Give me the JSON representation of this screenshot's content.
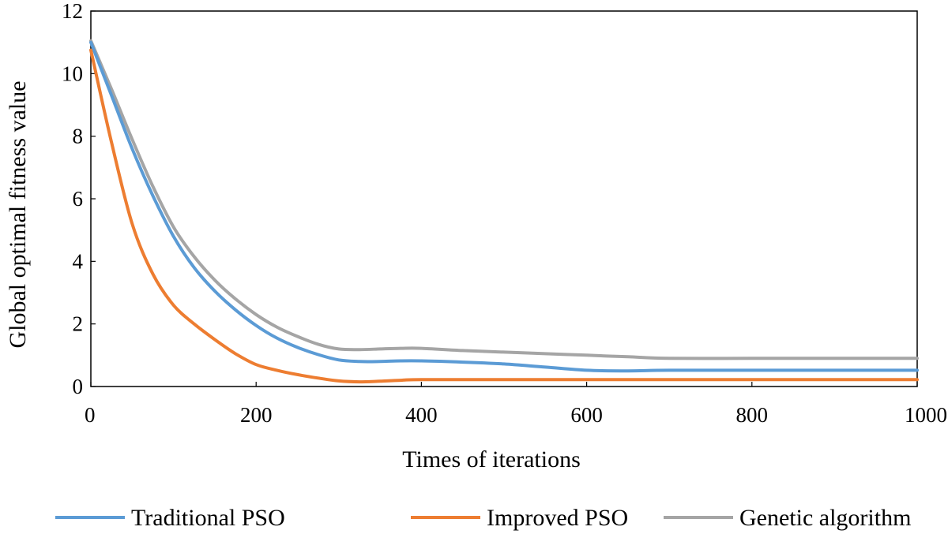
{
  "chart_data": {
    "type": "line",
    "title": "",
    "xlabel": "Times of iterations",
    "ylabel": "Global optimal fitness value",
    "xlim": [
      0,
      1000
    ],
    "ylim": [
      0,
      12
    ],
    "xticks": [
      0,
      200,
      400,
      600,
      800,
      1000
    ],
    "yticks": [
      0,
      2,
      4,
      6,
      8,
      10,
      12
    ],
    "grid": false,
    "legend_position": "bottom",
    "series": [
      {
        "name": "Traditional PSO",
        "color": "#5B9BD5",
        "x": [
          0,
          25,
          50,
          75,
          100,
          125,
          150,
          175,
          200,
          225,
          250,
          275,
          300,
          325,
          350,
          375,
          400,
          450,
          500,
          550,
          600,
          650,
          700,
          800,
          900,
          1000
        ],
        "y": [
          11.0,
          9.3,
          7.6,
          6.1,
          4.8,
          3.8,
          3.05,
          2.45,
          1.95,
          1.55,
          1.25,
          1.02,
          0.85,
          0.8,
          0.8,
          0.82,
          0.82,
          0.78,
          0.72,
          0.62,
          0.52,
          0.5,
          0.52,
          0.52,
          0.52,
          0.52
        ]
      },
      {
        "name": "Improved PSO",
        "color": "#ED7D31",
        "x": [
          0,
          25,
          50,
          75,
          100,
          125,
          150,
          175,
          200,
          225,
          250,
          275,
          300,
          325,
          350,
          375,
          400,
          500,
          600,
          700,
          800,
          900,
          1000
        ],
        "y": [
          10.75,
          7.8,
          5.2,
          3.6,
          2.6,
          2.0,
          1.5,
          1.05,
          0.7,
          0.52,
          0.38,
          0.27,
          0.18,
          0.15,
          0.17,
          0.2,
          0.22,
          0.22,
          0.22,
          0.22,
          0.22,
          0.22,
          0.22
        ]
      },
      {
        "name": "Genetic algorithm",
        "color": "#A5A5A5",
        "x": [
          0,
          25,
          50,
          75,
          100,
          125,
          150,
          175,
          200,
          225,
          250,
          275,
          300,
          325,
          350,
          375,
          400,
          450,
          500,
          550,
          600,
          650,
          700,
          800,
          900,
          1000
        ],
        "y": [
          11.05,
          9.5,
          7.9,
          6.4,
          5.1,
          4.15,
          3.4,
          2.8,
          2.3,
          1.9,
          1.6,
          1.35,
          1.2,
          1.18,
          1.2,
          1.22,
          1.22,
          1.15,
          1.1,
          1.05,
          1.0,
          0.95,
          0.9,
          0.9,
          0.9,
          0.9
        ]
      }
    ]
  }
}
